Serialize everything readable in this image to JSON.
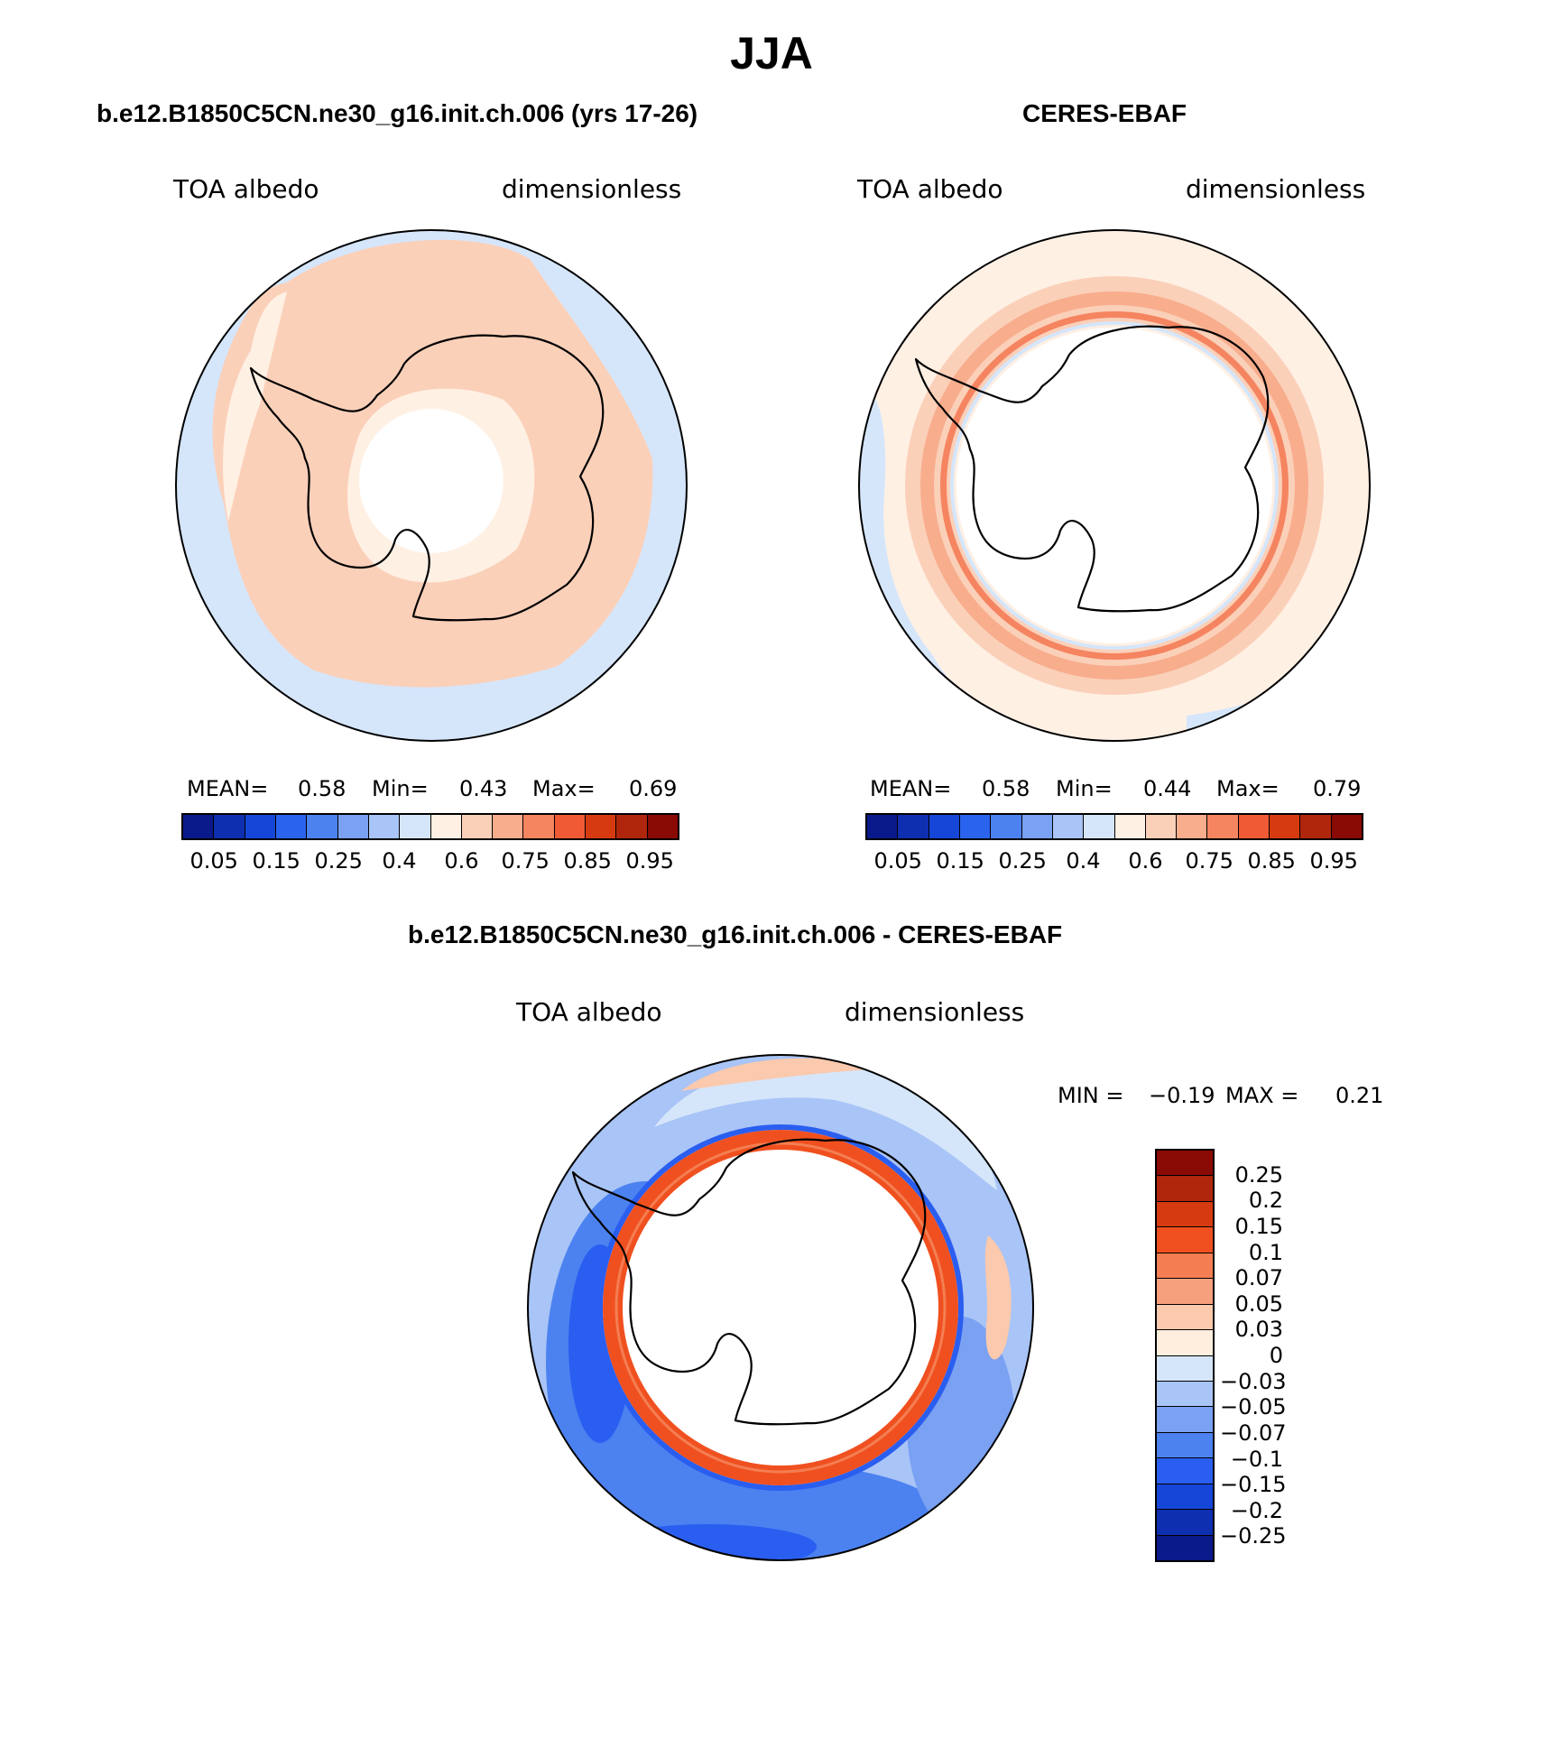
{
  "title": "JJA",
  "panels": [
    {
      "title": "b.e12.B1850C5CN.ne30_g16.init.ch.006 (yrs 17-26)",
      "left_label": "TOA albedo",
      "right_label": "dimensionless",
      "stats": {
        "mean_label": "MEAN=",
        "mean": "0.58",
        "min_label": "Min=",
        "min": "0.43",
        "max_label": "Max=",
        "max": "0.69"
      }
    },
    {
      "title": "CERES-EBAF",
      "left_label": "TOA albedo",
      "right_label": "dimensionless",
      "stats": {
        "mean_label": "MEAN=",
        "mean": "0.58",
        "min_label": "Min=",
        "min": "0.44",
        "max_label": "Max=",
        "max": "0.79"
      }
    },
    {
      "title": "b.e12.B1850C5CN.ne30_g16.init.ch.006 - CERES-EBAF",
      "left_label": "TOA albedo",
      "right_label": "dimensionless",
      "minmax": {
        "min_label": "MIN =",
        "min": "−0.19",
        "max_label": "MAX =",
        "max": "0.21"
      }
    }
  ],
  "colorbars": {
    "absolute": {
      "colors": [
        "#0a1a8a",
        "#0d2fb0",
        "#1546d8",
        "#2a63ee",
        "#4c82f0",
        "#7aa1f2",
        "#a9c4f6",
        "#d5e6fb",
        "#fff0e4",
        "#fbd0b9",
        "#f8ad8d",
        "#f58460",
        "#f05a34",
        "#d63a10",
        "#b0260c",
        "#8a0a05"
      ],
      "ticks": [
        "0.05",
        "0.15",
        "0.25",
        "0.4",
        "0.6",
        "0.75",
        "0.85",
        "0.95"
      ]
    },
    "difference": {
      "colors": [
        "#8a0a05",
        "#b0260c",
        "#d63a10",
        "#f0501f",
        "#f47e52",
        "#f7a07d",
        "#fbc9ae",
        "#ffeedd",
        "#d5e6fb",
        "#a9c4f6",
        "#7aa1f2",
        "#4c82f0",
        "#2a5ef0",
        "#1546d8",
        "#0d2fb0",
        "#0a1a8a"
      ],
      "ticks": [
        "0.25",
        "0.2",
        "0.15",
        "0.1",
        "0.07",
        "0.05",
        "0.03",
        "0",
        "−0.03",
        "−0.05",
        "−0.07",
        "−0.1",
        "−0.15",
        "−0.2",
        "−0.25"
      ]
    }
  }
}
